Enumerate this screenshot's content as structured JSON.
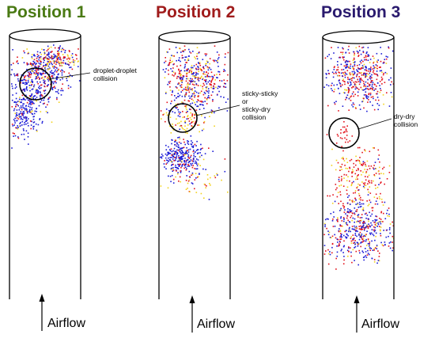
{
  "colors": {
    "blue": "#1a1ad6",
    "red": "#e3121b",
    "yellow": "#f2d21a",
    "title_1": "#4a7a14",
    "title_2": "#a01c1c",
    "title_3": "#2a1a6e"
  },
  "panels": [
    {
      "title": "Position 1",
      "airflow": "Airflow",
      "annotation": [
        "droplet-droplet",
        "collision"
      ]
    },
    {
      "title": "Position 2",
      "airflow": "Airflow",
      "annotation": [
        "sticky-sticky",
        "or",
        "sticky-dry",
        "collision"
      ]
    },
    {
      "title": "Position 3",
      "airflow": "Airflow",
      "annotation": [
        "dry-dry",
        "collision"
      ]
    }
  ]
}
